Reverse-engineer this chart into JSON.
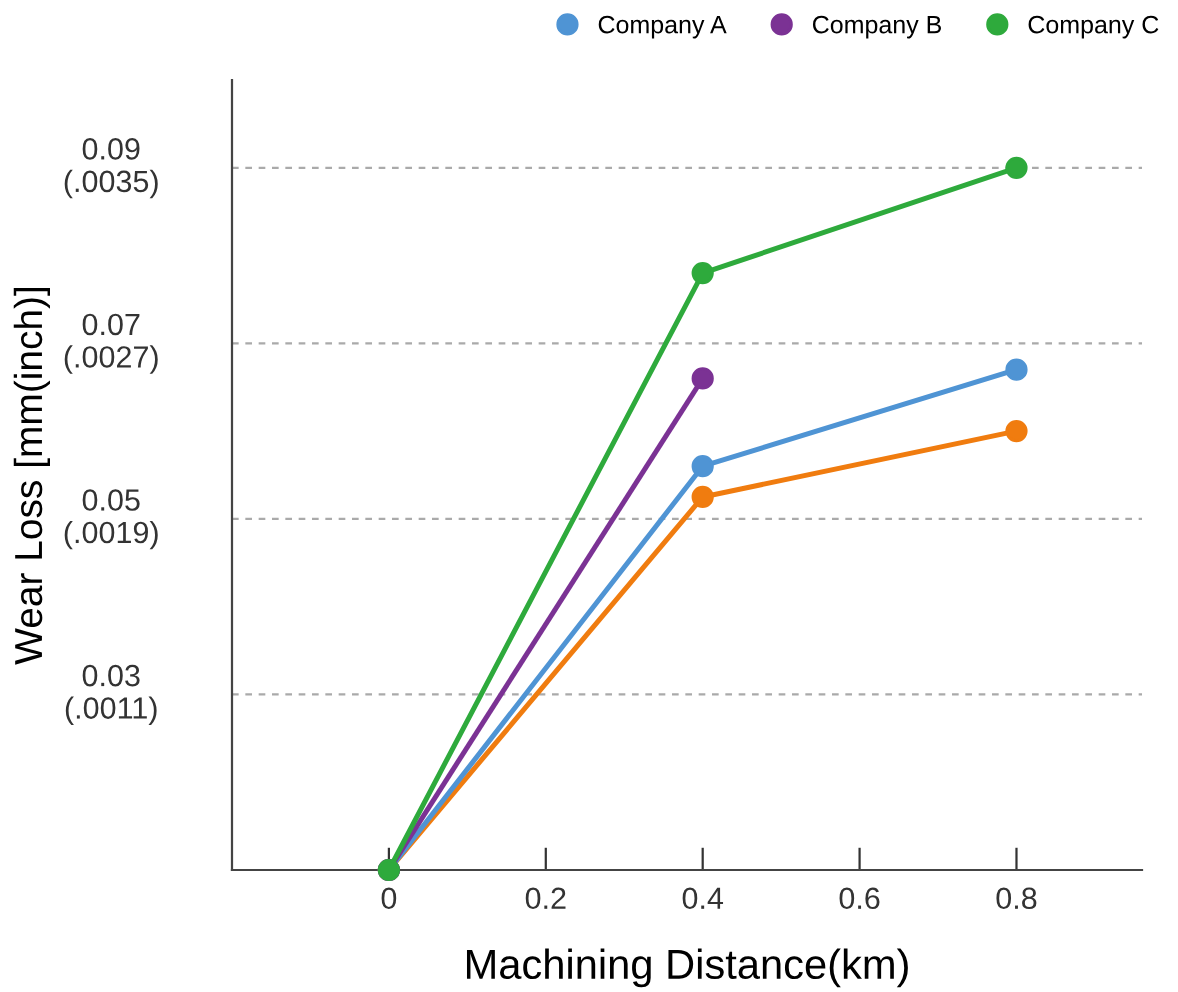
{
  "chart_data": {
    "type": "line",
    "xlabel": "Machining Distance(km)",
    "ylabel": "Wear Loss [mm(inch)]",
    "series": [
      {
        "color": "#f07c0f",
        "x": [
          0,
          0.4,
          0.8
        ],
        "values": [
          0.01,
          0.0525,
          0.06
        ]
      },
      {
        "name": "Company A",
        "color": "#4f94d4",
        "x": [
          0,
          0.4,
          0.8
        ],
        "values": [
          0.01,
          0.056,
          0.067
        ]
      },
      {
        "name": "Company B",
        "color": "#7b3294",
        "x": [
          0,
          0.4
        ],
        "values": [
          0.01,
          0.066
        ]
      },
      {
        "name": "Company C",
        "color": "#2eaa3c",
        "x": [
          0,
          0.4,
          0.8
        ],
        "values": [
          0.01,
          0.078,
          0.09
        ]
      }
    ],
    "xlim": [
      -0.2,
      0.96
    ],
    "xticks": [
      0,
      0.2,
      0.4,
      0.6,
      0.8
    ],
    "ylim": [
      0.01,
      0.1
    ],
    "yticks": [
      0.03,
      0.05,
      0.07,
      0.09
    ],
    "y2lim": [
      0.0003,
      0.0039
    ],
    "y2ticks": [
      {
        "value": 0.0011,
        "label": "(.0011)"
      },
      {
        "value": 0.0019,
        "label": "(.0019)"
      },
      {
        "value": 0.0027,
        "label": "(.0027)"
      },
      {
        "value": 0.0035,
        "label": "(.0035)"
      }
    ],
    "grid": "y",
    "legend": "top right",
    "marker": "circle",
    "line_style": "solid"
  }
}
